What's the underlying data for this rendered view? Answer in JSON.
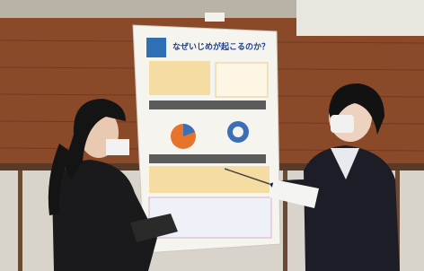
{
  "poster": {
    "title": "なぜいじめが起こるのか？"
  }
}
